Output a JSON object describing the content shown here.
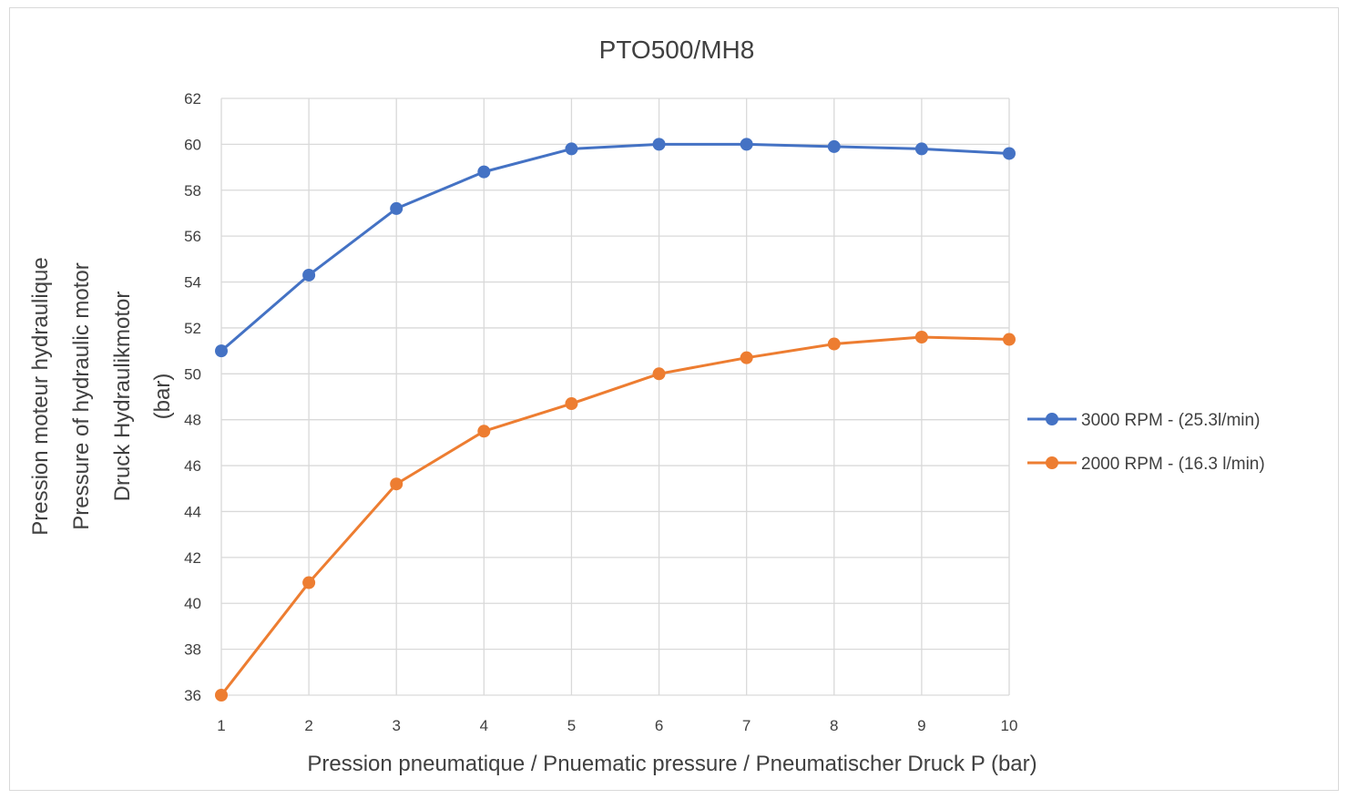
{
  "chart_data": {
    "type": "line",
    "title": "PTO500/MH8",
    "xlabel": "Pression pneumatique / Pnuematic pressure / Pneumatischer Druck P (bar)",
    "ylabel_lines": [
      "Pression moteur hydraulique",
      "Pressure of hydraulic motor",
      "Druck Hydraulikmotor",
      "(bar)"
    ],
    "x": [
      1,
      2,
      3,
      4,
      5,
      6,
      7,
      8,
      9,
      10
    ],
    "xlim": [
      1,
      10
    ],
    "ylim": [
      36,
      62
    ],
    "y_ticks": [
      36,
      38,
      40,
      42,
      44,
      46,
      48,
      50,
      52,
      54,
      56,
      58,
      60,
      62
    ],
    "grid": true,
    "legend_position": "right",
    "series": [
      {
        "name": "3000 RPM - (25.3l/min)",
        "color": "#4472c4",
        "values": [
          51.0,
          54.3,
          57.2,
          58.8,
          59.8,
          60.0,
          60.0,
          59.9,
          59.8,
          59.6
        ]
      },
      {
        "name": "2000 RPM - (16.3 l/min)",
        "color": "#ed7d31",
        "values": [
          36.0,
          40.9,
          45.2,
          47.5,
          48.7,
          50.0,
          50.7,
          51.3,
          51.6,
          51.5
        ]
      }
    ]
  }
}
